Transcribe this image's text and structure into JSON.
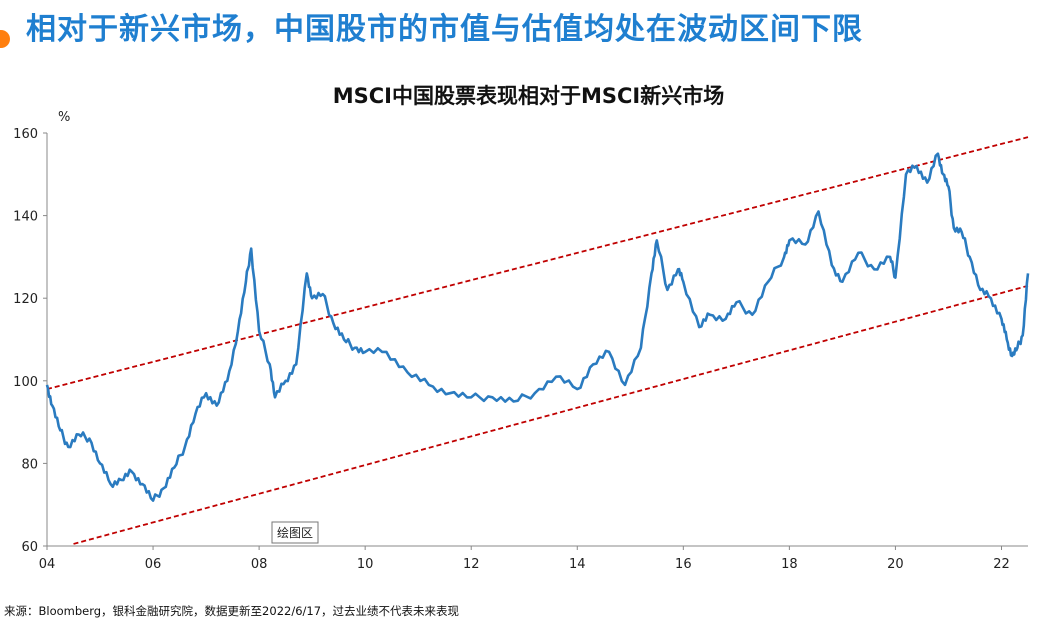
{
  "page": {
    "title": "相对于新兴市场，中国股市的市值与估值均处在波动区间下限",
    "source": "来源：Bloomberg，银科金融研究院，数据更新至2022/6/17，过去业绩不代表未来表现",
    "plot_area_tag": "绘图区"
  },
  "chart_data": {
    "type": "line",
    "title": "MSCI中国股票表现相对于MSCI新兴市场",
    "unit": "%",
    "xlabel": "",
    "ylabel": "",
    "xlim": [
      2004.0,
      2022.5
    ],
    "ylim": [
      60,
      160
    ],
    "x_ticks": [
      2004,
      2006,
      2008,
      2010,
      2012,
      2014,
      2016,
      2018,
      2020,
      2022
    ],
    "x_tick_labels": [
      "04",
      "06",
      "08",
      "10",
      "12",
      "14",
      "16",
      "18",
      "20",
      "22"
    ],
    "y_ticks": [
      60,
      80,
      100,
      120,
      140,
      160
    ],
    "y_tick_labels": [
      "60",
      "80",
      "100",
      "120",
      "140",
      "160"
    ],
    "grid": false,
    "line_color": "#2a7bc0",
    "channel_color": "#c00000",
    "series": [
      {
        "x": [
          2004.0,
          2004.1,
          2004.25,
          2004.4,
          2004.6,
          2004.8,
          2005.0,
          2005.2,
          2005.4,
          2005.6,
          2005.8,
          2006.0,
          2006.2,
          2006.4,
          2006.6,
          2006.8,
          2007.0,
          2007.2,
          2007.4,
          2007.6,
          2007.75,
          2007.85,
          2008.0,
          2008.2,
          2008.3,
          2008.5,
          2008.7,
          2008.9,
          2009.0,
          2009.2,
          2009.4,
          2009.6,
          2009.8,
          2010.0,
          2010.4,
          2010.8,
          2011.2,
          2011.6,
          2012.0,
          2012.4,
          2012.8,
          2013.2,
          2013.6,
          2014.0,
          2014.3,
          2014.6,
          2014.9,
          2015.2,
          2015.4,
          2015.5,
          2015.7,
          2015.9,
          2016.0,
          2016.3,
          2016.5,
          2016.8,
          2017.0,
          2017.3,
          2017.6,
          2017.9,
          2018.0,
          2018.3,
          2018.55,
          2018.8,
          2019.0,
          2019.3,
          2019.6,
          2019.9,
          2020.0,
          2020.2,
          2020.4,
          2020.6,
          2020.8,
          2020.9,
          2021.0,
          2021.1,
          2021.25,
          2021.4,
          2021.6,
          2021.8,
          2022.0,
          2022.1,
          2022.2,
          2022.3,
          2022.4,
          2022.5
        ],
        "y": [
          99,
          94,
          88,
          84,
          87,
          86,
          80,
          75,
          76,
          78,
          75,
          71,
          74,
          79,
          84,
          92,
          97,
          94,
          100,
          112,
          124,
          132,
          112,
          104,
          96,
          100,
          104,
          126,
          120,
          121,
          114,
          110,
          108,
          107,
          107,
          102,
          99,
          97,
          96,
          96,
          95,
          97,
          101,
          98,
          104,
          107,
          99,
          108,
          126,
          134,
          122,
          127,
          124,
          113,
          116,
          115,
          119,
          116,
          124,
          130,
          134,
          133,
          141,
          128,
          124,
          131,
          127,
          130,
          125,
          150,
          152,
          148,
          155,
          150,
          147,
          137,
          136,
          130,
          122,
          120,
          115,
          110,
          106,
          108,
          111,
          126
        ]
      }
    ],
    "channel_lines": [
      {
        "x": [
          2004.0,
          2022.5
        ],
        "y": [
          98,
          159
        ]
      },
      {
        "x": [
          2004.5,
          2022.5
        ],
        "y": [
          60.5,
          123
        ]
      }
    ]
  }
}
